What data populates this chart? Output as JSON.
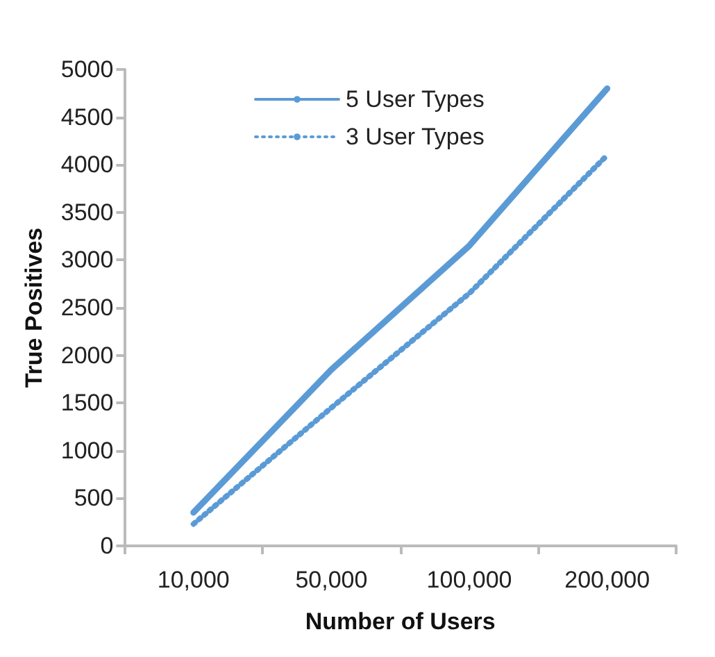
{
  "chart_data": {
    "type": "line",
    "xlabel": "Number of Users",
    "ylabel": "True Positives",
    "categories": [
      "10,000",
      "50,000",
      "100,000",
      "200,000"
    ],
    "ylim": [
      0,
      5000
    ],
    "yticks": [
      0,
      500,
      1000,
      1500,
      2000,
      2500,
      3000,
      3500,
      4000,
      4500,
      5000
    ],
    "grid": false,
    "legend": "top",
    "marker": "none",
    "series": [
      {
        "name": "5 User Types",
        "color": "#5b9bd5",
        "values": [
          350,
          1850,
          3150,
          4800
        ],
        "line_style": "solid"
      },
      {
        "name": "3 User Types",
        "color": "#5b9bd5",
        "values": [
          230,
          1450,
          2650,
          4100
        ],
        "line_style": "dotted"
      }
    ]
  }
}
